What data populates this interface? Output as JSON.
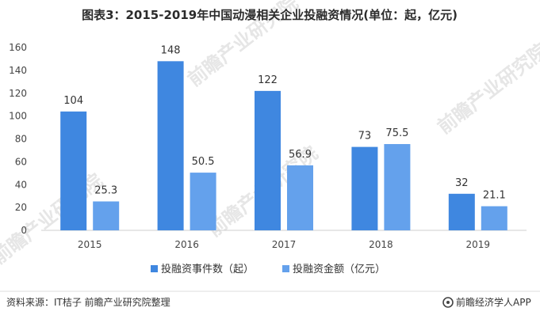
{
  "chart_data": {
    "type": "bar",
    "title": "图表3：2015-2019年中国动漫相关企业投融资情况(单位：起，亿元)",
    "categories": [
      "2015",
      "2016",
      "2017",
      "2018",
      "2019"
    ],
    "series": [
      {
        "name": "投融资事件数（起）",
        "values": [
          104,
          148,
          122,
          73,
          32
        ],
        "color": "#3f87e0"
      },
      {
        "name": "投融资金额（亿元）",
        "values": [
          25.3,
          50.5,
          56.9,
          75.5,
          21.1
        ],
        "color": "#64a1ec"
      }
    ],
    "ylim": [
      0,
      160
    ],
    "yticks": [
      0,
      20,
      40,
      60,
      80,
      100,
      120,
      140,
      160
    ],
    "grid": false,
    "legend": "bottom"
  },
  "source": "资料来源：IT桔子 前瞻产业研究院整理",
  "brand": "前瞻经济学人APP",
  "watermark": "前瞻产业研究院"
}
